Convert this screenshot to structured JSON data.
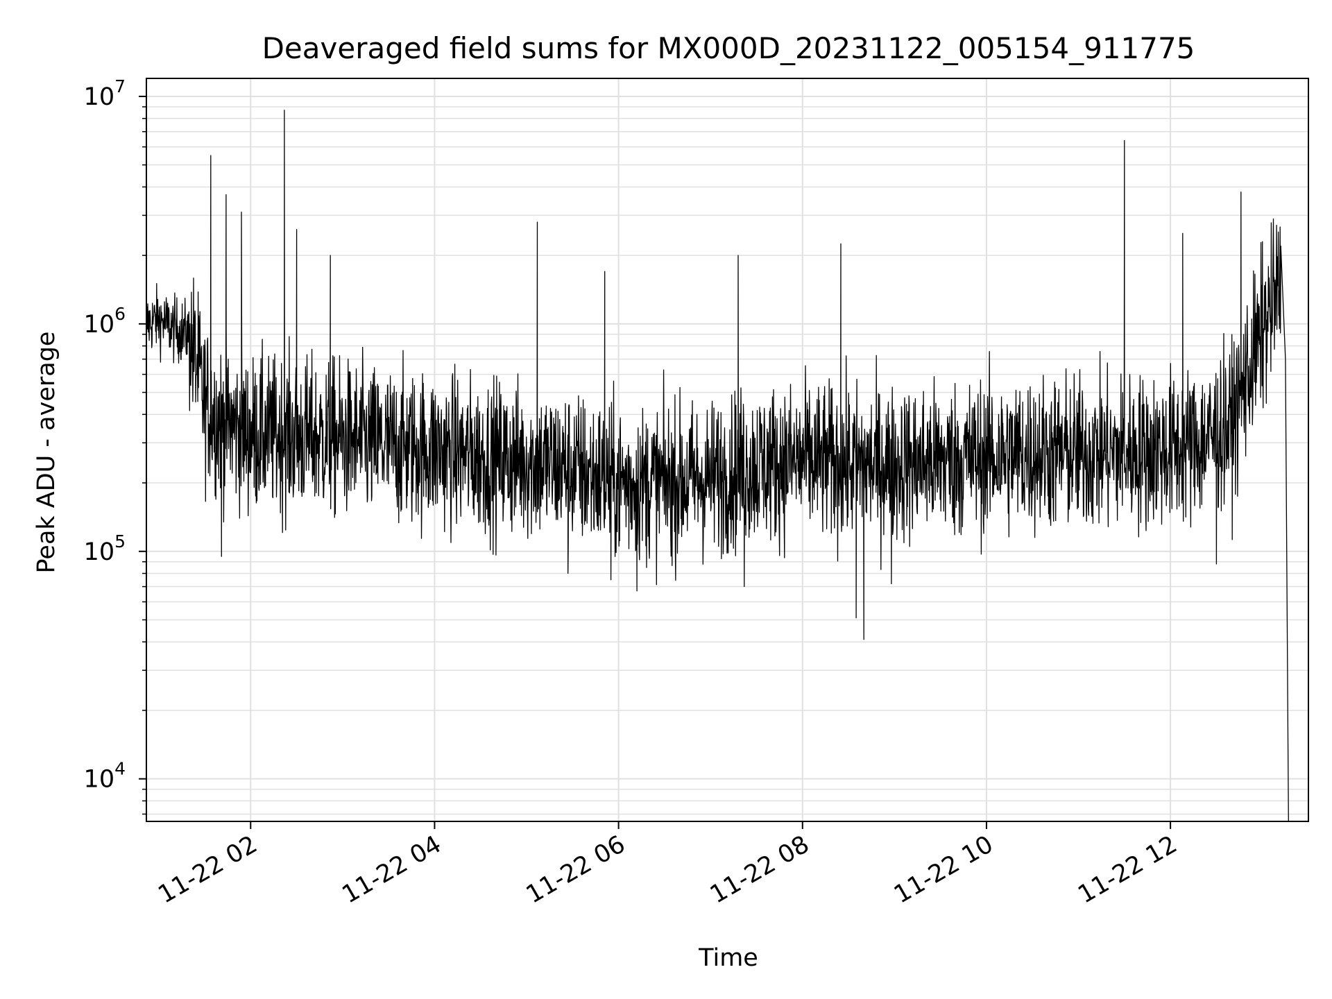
{
  "chart_data": {
    "type": "line",
    "title": "Deaveraged field sums for MX000D_20231122_005154_911775",
    "xlabel": "Time",
    "ylabel": "Peak ADU - average",
    "yscale": "log",
    "ylim": [
      6500,
      12000000
    ],
    "xlim": [
      "2023-11-22 00:52",
      "2023-11-22 13:30"
    ],
    "grid": true,
    "line_color": "#000000",
    "grid_color": "#e0e0e0",
    "x_ticks": [
      {
        "value": "2023-11-22 02:00",
        "label": "11-22 02"
      },
      {
        "value": "2023-11-22 04:00",
        "label": "11-22 04"
      },
      {
        "value": "2023-11-22 06:00",
        "label": "11-22 06"
      },
      {
        "value": "2023-11-22 08:00",
        "label": "11-22 08"
      },
      {
        "value": "2023-11-22 10:00",
        "label": "11-22 10"
      },
      {
        "value": "2023-11-22 12:00",
        "label": "11-22 12"
      }
    ],
    "y_ticks": [
      {
        "value": 10000,
        "base": "10",
        "exp": "4"
      },
      {
        "value": 100000,
        "base": "10",
        "exp": "5"
      },
      {
        "value": 1000000,
        "base": "10",
        "exp": "6"
      },
      {
        "value": 10000000,
        "base": "10",
        "exp": "7"
      }
    ],
    "series": [
      {
        "x": [
          "2023-11-22 00:52",
          "2023-11-22 01:00",
          "2023-11-22 01:10",
          "2023-11-22 01:20",
          "2023-11-22 01:25",
          "2023-11-22 01:30",
          "2023-11-22 01:40",
          "2023-11-22 01:50",
          "2023-11-22 02:00",
          "2023-11-22 02:30",
          "2023-11-22 03:00",
          "2023-11-22 03:30",
          "2023-11-22 04:00",
          "2023-11-22 04:30",
          "2023-11-22 05:00",
          "2023-11-22 05:30",
          "2023-11-22 06:00",
          "2023-11-22 06:30",
          "2023-11-22 07:00",
          "2023-11-22 07:30",
          "2023-11-22 08:00",
          "2023-11-22 08:30",
          "2023-11-22 09:00",
          "2023-11-22 09:30",
          "2023-11-22 10:00",
          "2023-11-22 10:30",
          "2023-11-22 11:00",
          "2023-11-22 11:30",
          "2023-11-22 12:00",
          "2023-11-22 12:20",
          "2023-11-22 12:40",
          "2023-11-22 12:50",
          "2023-11-22 13:00",
          "2023-11-22 13:08",
          "2023-11-22 13:12",
          "2023-11-22 13:15",
          "2023-11-22 13:17"
        ],
        "y": [
          1000000,
          1050000,
          950000,
          900000,
          650000,
          450000,
          380000,
          350000,
          330000,
          320000,
          310000,
          290000,
          280000,
          260000,
          250000,
          230000,
          200000,
          200000,
          210000,
          240000,
          250000,
          240000,
          240000,
          250000,
          260000,
          270000,
          270000,
          270000,
          280000,
          300000,
          360000,
          600000,
          900000,
          1300000,
          1500000,
          700000,
          6000
        ]
      }
    ],
    "spikes": [
      {
        "x": "2023-11-22 01:34",
        "y": 5500000
      },
      {
        "x": "2023-11-22 01:44",
        "y": 3700000
      },
      {
        "x": "2023-11-22 01:54",
        "y": 3100000
      },
      {
        "x": "2023-11-22 02:22",
        "y": 8700000
      },
      {
        "x": "2023-11-22 02:30",
        "y": 2600000
      },
      {
        "x": "2023-11-22 02:52",
        "y": 2000000
      },
      {
        "x": "2023-11-22 05:07",
        "y": 2800000
      },
      {
        "x": "2023-11-22 05:51",
        "y": 1700000
      },
      {
        "x": "2023-11-22 07:18",
        "y": 2000000
      },
      {
        "x": "2023-11-22 08:25",
        "y": 2250000
      },
      {
        "x": "2023-11-22 11:30",
        "y": 6400000
      },
      {
        "x": "2023-11-22 12:08",
        "y": 2500000
      },
      {
        "x": "2023-11-22 12:46",
        "y": 3800000
      },
      {
        "x": "2023-11-22 13:00",
        "y": 2300000
      }
    ],
    "dips": [
      {
        "x": "2023-11-22 01:41",
        "y": 95000
      },
      {
        "x": "2023-11-22 05:27",
        "y": 80000
      },
      {
        "x": "2023-11-22 05:55",
        "y": 75000
      },
      {
        "x": "2023-11-22 06:12",
        "y": 67000
      },
      {
        "x": "2023-11-22 07:22",
        "y": 70000
      },
      {
        "x": "2023-11-22 08:35",
        "y": 51000
      },
      {
        "x": "2023-11-22 08:40",
        "y": 41000
      },
      {
        "x": "2023-11-22 08:58",
        "y": 72000
      },
      {
        "x": "2023-11-22 12:30",
        "y": 88000
      }
    ]
  }
}
